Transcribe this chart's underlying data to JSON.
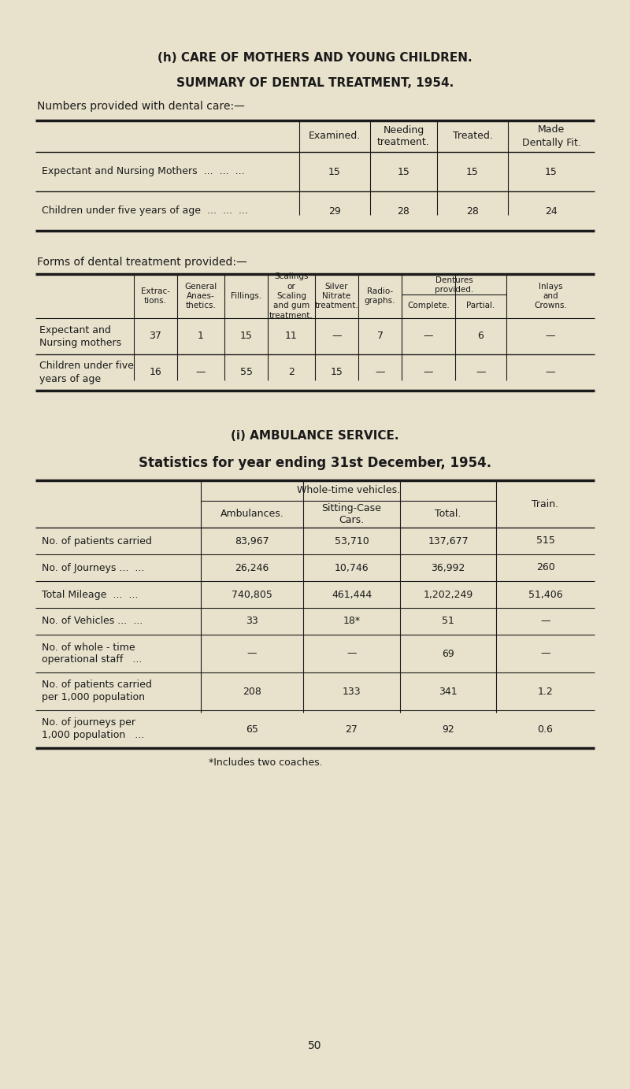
{
  "bg_color": "#e8e2cc",
  "text_color": "#1a1a1a",
  "page_title_h": "(h) CARE OF MOTHERS AND YOUNG CHILDREN.",
  "section1_title": "SUMMARY OF DENTAL TREATMENT, 1954.",
  "table1_heading": "Numbers provided with dental care:—",
  "table1_col_headers": [
    "Examined.",
    "Needing\ntreatment.",
    "Treated.",
    "Made\nDentally Fit."
  ],
  "table1_rows": [
    [
      "Expectant and Nursing Mothers  ...  ...  ...",
      "15",
      "15",
      "15",
      "15"
    ],
    [
      "Children under five years of age  ...  ...  ...",
      "29",
      "28",
      "28",
      "24"
    ]
  ],
  "table2_heading": "Forms of dental treatment provided:—",
  "table2_col_headers": [
    "Extrac-\ntions.",
    "General\nAnaes-\nthetics.",
    "Fillings.",
    "Scalings\nor\nScaling\nand gum\ntreatment.",
    "Silver\nNitrate\ntreatment.",
    "Radio-\ngraphs.",
    "Complete.",
    "Partial.",
    "Inlays\nand\nCrowns."
  ],
  "table2_dentures_header": "Dentures\nprovided.",
  "table2_rows": [
    [
      "Expectant and\nNursing mothers",
      "37",
      "1",
      "15",
      "11",
      "—",
      "7",
      "—",
      "6",
      "—"
    ],
    [
      "Children under five\nyears of age",
      "16",
      "—",
      "55",
      "2",
      "15",
      "—",
      "—",
      "—",
      "—"
    ]
  ],
  "section2_title_i": "(i) AMBULANCE SERVICE.",
  "section2_title": "Statistics for year ending 31st December, 1954.",
  "table3_group_header": "Whole-time vehicles.",
  "table3_col_headers": [
    "Ambulances.",
    "Sitting-Case\nCars.",
    "Total.",
    "Train."
  ],
  "table3_rows": [
    [
      "No. of patients carried",
      "83,967",
      "53,710",
      "137,677",
      "515"
    ],
    [
      "No. of Journeys ...  ...",
      "26,246",
      "10,746",
      "36,992",
      "260"
    ],
    [
      "Total Mileage  ...  ...",
      "740,805",
      "461,444",
      "1,202,249",
      "51,406"
    ],
    [
      "No. of Vehicles ...  ...",
      "33",
      "18*",
      "51",
      "—"
    ],
    [
      "No. of whole - time\noperational staff   ...",
      "—",
      "—",
      "69",
      "—"
    ],
    [
      "No. of patients carried\nper 1,000 population",
      "208",
      "133",
      "341",
      "1.2"
    ],
    [
      "No. of journeys per\n1,000 population   ...",
      "65",
      "27",
      "92",
      "0.6"
    ]
  ],
  "footnote": "*Includes two coaches.",
  "page_number": "50"
}
